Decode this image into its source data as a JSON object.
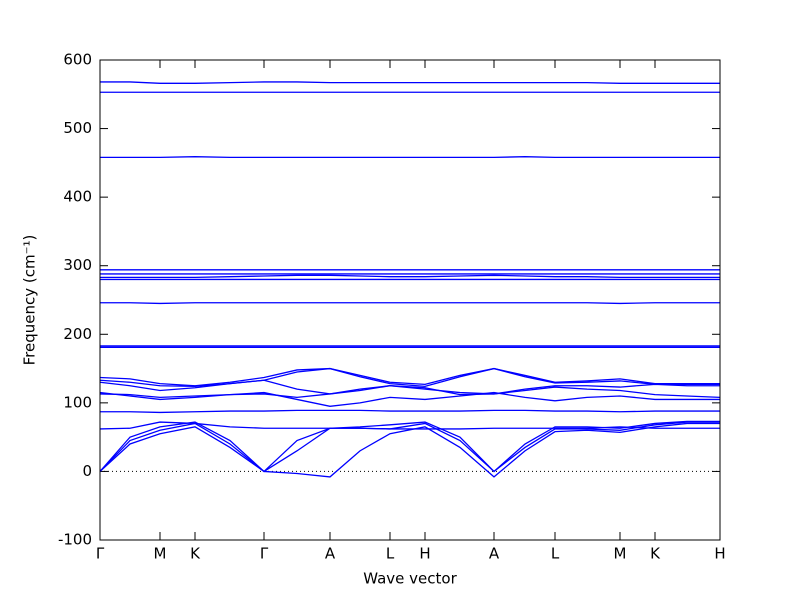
{
  "chart_data": {
    "type": "line",
    "xlabel": "Wave vector",
    "ylabel": "Frequency (cm⁻¹)",
    "color": "#0000ff",
    "xlim": [
      0,
      620
    ],
    "ylim": [
      -100,
      600
    ],
    "xticks": [
      {
        "value": 0,
        "label": "Γ"
      },
      {
        "value": 60,
        "label": "M"
      },
      {
        "value": 95,
        "label": "K"
      },
      {
        "value": 164,
        "label": "Γ"
      },
      {
        "value": 230,
        "label": "A"
      },
      {
        "value": 290,
        "label": "L"
      },
      {
        "value": 325,
        "label": "H"
      },
      {
        "value": 394,
        "label": "A"
      },
      {
        "value": 455,
        "label": "L"
      },
      {
        "value": 520,
        "label": "M"
      },
      {
        "value": 555,
        "label": "K"
      },
      {
        "value": 620,
        "label": "H"
      }
    ],
    "yticks": [
      -100,
      0,
      100,
      200,
      300,
      400,
      500,
      600
    ],
    "x": [
      0,
      30,
      60,
      95,
      130,
      164,
      197,
      230,
      260,
      290,
      325,
      360,
      394,
      425,
      455,
      487,
      520,
      555,
      587,
      620
    ],
    "series": [
      {
        "values": [
          0,
          40,
          55,
          65,
          35,
          0,
          -3,
          -8,
          30,
          55,
          65,
          35,
          -8,
          30,
          58,
          60,
          57,
          65,
          70,
          70
        ]
      },
      {
        "values": [
          0,
          45,
          60,
          70,
          40,
          0,
          30,
          63,
          63,
          62,
          70,
          45,
          0,
          35,
          62,
          62,
          60,
          68,
          72,
          72
        ]
      },
      {
        "values": [
          0,
          50,
          65,
          72,
          45,
          0,
          45,
          63,
          65,
          68,
          72,
          50,
          0,
          40,
          65,
          65,
          63,
          70,
          73,
          73
        ]
      },
      {
        "values": [
          62,
          63,
          72,
          70,
          65,
          63,
          63,
          63,
          63,
          62,
          62,
          62,
          63,
          63,
          63,
          63,
          65,
          63,
          63,
          63
        ]
      },
      {
        "values": [
          87,
          87,
          86,
          87,
          88,
          88,
          89,
          89,
          89,
          88,
          88,
          88,
          89,
          89,
          88,
          88,
          87,
          88,
          88,
          88
        ]
      },
      {
        "values": [
          115,
          110,
          105,
          108,
          112,
          115,
          105,
          95,
          100,
          108,
          105,
          110,
          115,
          108,
          103,
          108,
          110,
          105,
          105,
          105
        ]
      },
      {
        "values": [
          113,
          112,
          108,
          110,
          112,
          113,
          108,
          113,
          120,
          125,
          122,
          112,
          113,
          118,
          123,
          120,
          118,
          112,
          110,
          108
        ]
      },
      {
        "values": [
          130,
          125,
          118,
          122,
          128,
          133,
          120,
          113,
          118,
          125,
          120,
          115,
          113,
          120,
          125,
          125,
          123,
          127,
          125,
          125
        ]
      },
      {
        "values": [
          133,
          130,
          125,
          124,
          128,
          133,
          145,
          150,
          138,
          128,
          124,
          138,
          150,
          138,
          129,
          130,
          132,
          127,
          127,
          127
        ]
      },
      {
        "values": [
          137,
          135,
          128,
          125,
          130,
          137,
          148,
          150,
          140,
          130,
          127,
          140,
          150,
          140,
          130,
          132,
          135,
          128,
          128,
          128
        ]
      },
      {
        "values": [
          181,
          181,
          181,
          181,
          181,
          181,
          181,
          181,
          181,
          181,
          181,
          181,
          181,
          181,
          181,
          181,
          181,
          181,
          181,
          181
        ]
      },
      {
        "values": [
          183,
          183,
          183,
          183,
          183,
          183,
          183,
          183,
          183,
          183,
          183,
          183,
          183,
          183,
          183,
          183,
          183,
          183,
          183,
          183
        ]
      },
      {
        "values": [
          246,
          246,
          245,
          246,
          246,
          246,
          246,
          246,
          246,
          246,
          246,
          246,
          246,
          246,
          246,
          246,
          245,
          246,
          246,
          246
        ]
      },
      {
        "values": [
          280,
          280,
          280,
          280,
          280,
          280,
          280,
          280,
          280,
          280,
          280,
          280,
          280,
          280,
          280,
          280,
          280,
          280,
          280,
          280
        ]
      },
      {
        "values": [
          283,
          283,
          283,
          283,
          284,
          285,
          286,
          286,
          285,
          284,
          284,
          285,
          286,
          285,
          284,
          284,
          283,
          283,
          283,
          283
        ]
      },
      {
        "values": [
          288,
          288,
          288,
          288,
          288,
          288,
          288,
          288,
          288,
          288,
          288,
          288,
          288,
          288,
          288,
          288,
          288,
          288,
          288,
          288
        ]
      },
      {
        "values": [
          294,
          294,
          294,
          294,
          294,
          294,
          294,
          294,
          294,
          294,
          294,
          294,
          294,
          294,
          294,
          294,
          294,
          294,
          294,
          294
        ]
      },
      {
        "values": [
          458,
          458,
          458,
          459,
          458,
          458,
          458,
          458,
          458,
          458,
          458,
          458,
          458,
          459,
          458,
          458,
          458,
          458,
          458,
          458
        ]
      },
      {
        "values": [
          553,
          553,
          553,
          553,
          553,
          553,
          553,
          553,
          553,
          553,
          553,
          553,
          553,
          553,
          553,
          553,
          553,
          553,
          553,
          553
        ]
      },
      {
        "values": [
          568,
          568,
          566,
          566,
          567,
          568,
          568,
          567,
          567,
          567,
          567,
          567,
          567,
          567,
          567,
          567,
          566,
          566,
          566,
          566
        ]
      }
    ]
  }
}
